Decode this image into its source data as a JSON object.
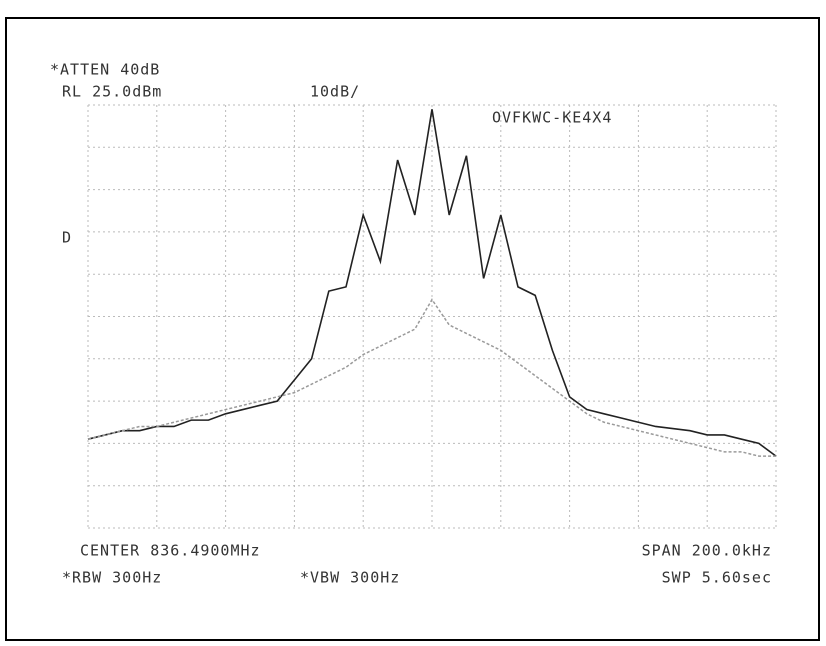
{
  "chart_data": {
    "type": "line",
    "annotations": [
      "*ATTEN 40dB",
      "RL 25.0dBm",
      "10dB/",
      "OVFKWC-KE4X4",
      "D",
      "CENTER 836.4900MHz",
      "SPAN 200.0kHz",
      "*RBW 300Hz",
      "*VBW 300Hz",
      "SWP 5.60sec"
    ],
    "x": [
      836.39,
      836.395,
      836.4,
      836.405,
      836.41,
      836.415,
      836.42,
      836.425,
      836.43,
      836.435,
      836.44,
      836.445,
      836.45,
      836.455,
      836.46,
      836.465,
      836.47,
      836.475,
      836.48,
      836.485,
      836.49,
      836.495,
      836.5,
      836.505,
      836.51,
      836.515,
      836.52,
      836.525,
      836.53,
      836.535,
      836.54,
      836.545,
      836.55,
      836.555,
      836.56,
      836.565,
      836.57,
      836.575,
      836.58,
      836.585,
      836.59
    ],
    "series": [
      {
        "color": "#222222",
        "values": [
          -54,
          -53,
          -52,
          -52,
          -51,
          -51,
          -49.5,
          -49.5,
          -48,
          -47,
          -46,
          -45,
          -40,
          -35,
          -19,
          -18,
          -1,
          -12,
          12,
          -1,
          24,
          -1,
          13,
          -16,
          -1,
          -18,
          -20,
          -33,
          -44,
          -47,
          -48,
          -49,
          -50,
          -51,
          -51.5,
          -52,
          -53,
          -53,
          -54,
          -55,
          -58
        ]
      },
      {
        "color": "#9a9a9a",
        "values": [
          -54,
          -53,
          -52,
          -51,
          -51,
          -50,
          -49,
          -48,
          -47,
          -46,
          -45,
          -44,
          -43,
          -41,
          -39,
          -37,
          -34,
          -32,
          -30,
          -28,
          -21,
          -27,
          -29,
          -31,
          -33,
          -36,
          -39,
          -42,
          -45,
          -48,
          -50,
          -51,
          -52,
          -53,
          -54,
          -55,
          -56,
          -57,
          -57,
          -58,
          -58
        ]
      }
    ],
    "xlim": [
      836.39,
      836.59
    ],
    "ylim": [
      -75,
      25
    ],
    "grid": {
      "x_divisions": 10,
      "y_divisions": 10
    }
  }
}
